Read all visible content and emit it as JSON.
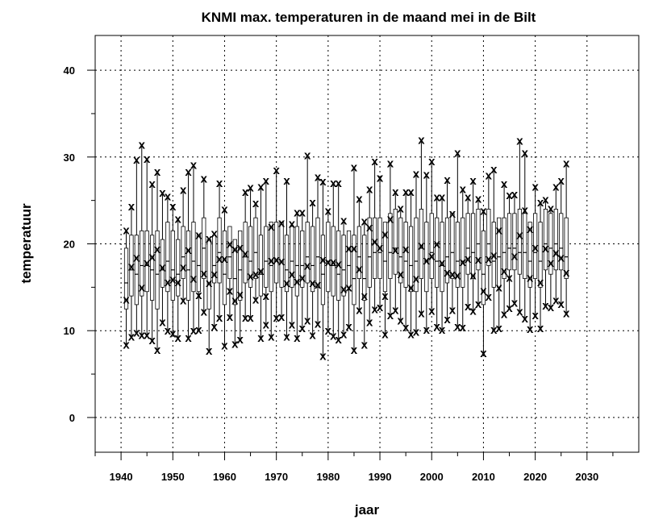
{
  "chart_data": {
    "type": "boxplot",
    "title": "KNMI max. temperaturen in de maand mei in de Bilt",
    "xlabel": "jaar",
    "ylabel": "temperatuur",
    "xlim": [
      1935,
      2040
    ],
    "ylim": [
      -4,
      44
    ],
    "x_ticks": [
      1940,
      1950,
      1960,
      1970,
      1980,
      1990,
      2000,
      2010,
      2020,
      2030
    ],
    "y_ticks": [
      0,
      10,
      20,
      30,
      40
    ],
    "grid": true,
    "marker_symbol": "x",
    "years": [
      1941,
      1942,
      1943,
      1944,
      1945,
      1946,
      1947,
      1948,
      1949,
      1950,
      1951,
      1952,
      1953,
      1954,
      1955,
      1956,
      1957,
      1958,
      1959,
      1960,
      1961,
      1962,
      1963,
      1964,
      1965,
      1966,
      1967,
      1968,
      1969,
      1970,
      1971,
      1972,
      1973,
      1974,
      1975,
      1976,
      1977,
      1978,
      1979,
      1980,
      1981,
      1982,
      1983,
      1984,
      1985,
      1986,
      1987,
      1988,
      1989,
      1990,
      1991,
      1992,
      1993,
      1994,
      1995,
      1996,
      1997,
      1998,
      1999,
      2000,
      2001,
      2002,
      2003,
      2004,
      2005,
      2006,
      2007,
      2008,
      2009,
      2010,
      2011,
      2012,
      2013,
      2014,
      2015,
      2016,
      2017,
      2018,
      2019,
      2020,
      2021,
      2022,
      2023,
      2024,
      2025,
      2026
    ],
    "min": [
      8.4,
      9.3,
      9.8,
      9.5,
      9.5,
      8.9,
      7.8,
      11.0,
      10.0,
      9.7,
      9.2,
      13.5,
      9.2,
      10.0,
      10.1,
      12.2,
      7.7,
      10.5,
      11.5,
      8.3,
      11.6,
      8.5,
      9.0,
      11.5,
      11.5,
      13.6,
      9.2,
      10.7,
      9.3,
      11.5,
      11.6,
      9.3,
      10.7,
      9.2,
      10.3,
      11.2,
      9.5,
      10.8,
      7.1,
      10.0,
      9.4,
      9.0,
      9.6,
      10.5,
      7.8,
      12.4,
      8.4,
      11.0,
      12.5,
      12.7,
      9.6,
      11.8,
      12.4,
      11.2,
      10.4,
      9.6,
      9.9,
      12.0,
      10.1,
      12.3,
      10.5,
      10.1,
      11.3,
      12.4,
      10.5,
      10.4,
      12.8,
      12.3,
      13.1,
      7.4,
      13.9,
      10.1,
      10.3,
      11.9,
      12.6,
      13.2,
      12.2,
      11.4,
      10.2,
      11.8,
      10.3,
      12.9,
      12.7,
      13.5,
      13.1,
      12.0
    ],
    "q1": [
      12.5,
      14.0,
      13.0,
      14.0,
      14.5,
      13.5,
      12.5,
      15.0,
      14.5,
      13.5,
      14.0,
      16.0,
      13.5,
      14.5,
      14.5,
      16.0,
      12.5,
      15.5,
      15.5,
      13.0,
      16.0,
      13.0,
      13.5,
      15.5,
      15.0,
      16.0,
      14.0,
      15.0,
      14.5,
      15.5,
      15.0,
      14.5,
      15.0,
      14.0,
      15.0,
      15.5,
      14.5,
      15.0,
      13.0,
      14.5,
      14.0,
      13.5,
      14.0,
      15.0,
      13.0,
      16.0,
      13.5,
      15.0,
      16.0,
      16.0,
      14.5,
      16.0,
      16.5,
      15.5,
      15.0,
      14.5,
      14.5,
      16.0,
      14.5,
      16.0,
      15.0,
      14.5,
      15.5,
      16.0,
      15.0,
      15.0,
      16.5,
      16.0,
      17.0,
      13.0,
      17.5,
      15.0,
      15.0,
      16.0,
      17.0,
      17.0,
      16.5,
      16.0,
      15.0,
      16.0,
      15.0,
      17.0,
      16.5,
      17.0,
      17.0,
      16.0
    ],
    "median": [
      15.5,
      17.0,
      16.5,
      17.5,
      17.5,
      17.0,
      16.5,
      17.0,
      18.0,
      17.0,
      16.5,
      18.5,
      17.0,
      18.0,
      17.5,
      19.5,
      15.5,
      17.5,
      19.0,
      16.5,
      18.5,
      16.0,
      17.0,
      18.5,
      18.0,
      19.0,
      16.5,
      18.0,
      17.5,
      18.0,
      18.0,
      17.0,
      18.0,
      17.5,
      17.5,
      18.5,
      17.5,
      18.5,
      16.5,
      18.0,
      17.5,
      16.5,
      17.0,
      17.5,
      16.0,
      18.5,
      16.0,
      18.5,
      19.0,
      19.0,
      18.0,
      19.0,
      19.5,
      18.5,
      18.0,
      17.5,
      18.0,
      19.5,
      18.0,
      19.0,
      18.0,
      17.5,
      18.5,
      19.0,
      18.0,
      18.0,
      19.5,
      19.0,
      20.0,
      16.5,
      20.0,
      18.0,
      18.5,
      19.0,
      19.5,
      19.5,
      19.0,
      19.0,
      18.0,
      19.0,
      18.0,
      20.0,
      19.5,
      20.0,
      19.5,
      18.5
    ],
    "q3": [
      19.5,
      21.0,
      21.0,
      21.5,
      21.5,
      21.0,
      21.5,
      20.5,
      22.5,
      21.5,
      20.5,
      22.0,
      21.5,
      22.5,
      21.0,
      23.0,
      20.5,
      21.0,
      23.0,
      21.5,
      22.0,
      20.5,
      21.5,
      22.5,
      22.0,
      23.0,
      21.0,
      22.0,
      22.5,
      22.5,
      22.5,
      21.0,
      22.0,
      22.0,
      21.5,
      22.5,
      22.0,
      23.0,
      21.0,
      22.5,
      22.0,
      21.5,
      21.0,
      21.5,
      21.0,
      22.0,
      21.0,
      23.0,
      23.0,
      23.0,
      22.5,
      23.5,
      24.0,
      23.0,
      22.5,
      22.0,
      23.0,
      24.0,
      22.5,
      23.5,
      23.0,
      22.5,
      23.0,
      23.5,
      22.5,
      23.0,
      23.5,
      23.5,
      24.0,
      21.5,
      24.0,
      22.5,
      23.0,
      23.0,
      23.5,
      23.5,
      24.0,
      23.5,
      22.5,
      23.5,
      22.5,
      24.0,
      23.5,
      24.0,
      23.5,
      23.0
    ],
    "max": [
      21.6,
      24.3,
      29.7,
      31.4,
      29.8,
      26.9,
      28.3,
      25.9,
      25.5,
      24.3,
      22.9,
      26.2,
      28.3,
      29.1,
      21.0,
      27.5,
      20.6,
      21.2,
      27.0,
      24.0,
      20.0,
      19.4,
      19.6,
      26.0,
      26.5,
      24.7,
      26.6,
      27.3,
      22.0,
      28.5,
      22.4,
      27.3,
      22.3,
      23.6,
      23.6,
      30.2,
      24.8,
      27.7,
      27.2,
      23.8,
      27.0,
      27.0,
      22.7,
      19.5,
      28.8,
      25.2,
      22.6,
      26.3,
      29.5,
      27.6,
      21.1,
      29.3,
      26.0,
      24.1,
      26.0,
      26.0,
      28.1,
      32.0,
      28.0,
      29.5,
      25.4,
      25.4,
      27.4,
      23.5,
      30.5,
      26.3,
      25.4,
      27.3,
      25.2,
      23.8,
      27.9,
      28.6,
      21.6,
      26.9,
      25.6,
      25.7,
      31.9,
      30.5,
      21.7,
      26.6,
      24.8,
      25.1,
      24.1,
      26.6,
      27.3,
      29.3
    ],
    "markers": [
      [
        1941,
        21.6
      ],
      [
        1941,
        13.6
      ],
      [
        1941,
        8.4
      ],
      [
        1942,
        24.3
      ],
      [
        1942,
        17.4
      ],
      [
        1942,
        9.3
      ],
      [
        1943,
        29.7
      ],
      [
        1943,
        18.4
      ],
      [
        1943,
        9.8
      ],
      [
        1944,
        31.4
      ],
      [
        1944,
        15.0
      ],
      [
        1944,
        9.5
      ],
      [
        1945,
        29.8
      ],
      [
        1945,
        17.8
      ],
      [
        1945,
        9.5
      ],
      [
        1946,
        26.9
      ],
      [
        1946,
        18.5
      ],
      [
        1946,
        8.9
      ],
      [
        1947,
        28.3
      ],
      [
        1947,
        19.4
      ],
      [
        1947,
        7.8
      ],
      [
        1948,
        25.9
      ],
      [
        1948,
        17.3
      ],
      [
        1948,
        11.0
      ],
      [
        1949,
        25.5
      ],
      [
        1949,
        15.6
      ],
      [
        1949,
        10.0
      ],
      [
        1950,
        24.3
      ],
      [
        1950,
        15.9
      ],
      [
        1950,
        9.7
      ],
      [
        1951,
        22.9
      ],
      [
        1951,
        15.6
      ],
      [
        1951,
        9.2
      ],
      [
        1952,
        26.2
      ],
      [
        1952,
        17.3
      ],
      [
        1952,
        13.5
      ],
      [
        1953,
        28.3
      ],
      [
        1953,
        19.3
      ],
      [
        1953,
        9.2
      ],
      [
        1954,
        29.1
      ],
      [
        1954,
        16.0
      ],
      [
        1954,
        10.0
      ],
      [
        1955,
        21.0
      ],
      [
        1955,
        14.1
      ],
      [
        1955,
        10.1
      ],
      [
        1956,
        27.5
      ],
      [
        1956,
        16.6
      ],
      [
        1956,
        12.2
      ],
      [
        1957,
        20.6
      ],
      [
        1957,
        15.5
      ],
      [
        1957,
        7.7
      ],
      [
        1958,
        21.2
      ],
      [
        1958,
        16.5
      ],
      [
        1958,
        10.5
      ],
      [
        1959,
        27.0
      ],
      [
        1959,
        18.3
      ],
      [
        1959,
        11.5
      ],
      [
        1960,
        24.0
      ],
      [
        1960,
        18.3
      ],
      [
        1960,
        8.3
      ],
      [
        1961,
        20.0
      ],
      [
        1961,
        14.6
      ],
      [
        1961,
        11.6
      ],
      [
        1962,
        19.4
      ],
      [
        1962,
        13.5
      ],
      [
        1962,
        8.5
      ],
      [
        1963,
        19.6
      ],
      [
        1963,
        14.2
      ],
      [
        1963,
        9.0
      ],
      [
        1964,
        26.0
      ],
      [
        1964,
        18.9
      ],
      [
        1964,
        11.5
      ],
      [
        1965,
        26.5
      ],
      [
        1965,
        16.3
      ],
      [
        1965,
        11.5
      ],
      [
        1966,
        24.7
      ],
      [
        1966,
        16.5
      ],
      [
        1966,
        13.6
      ],
      [
        1967,
        26.6
      ],
      [
        1967,
        16.9
      ],
      [
        1967,
        9.2
      ],
      [
        1968,
        27.3
      ],
      [
        1968,
        14.0
      ],
      [
        1968,
        10.7
      ],
      [
        1969,
        22.0
      ],
      [
        1969,
        18.1
      ],
      [
        1969,
        9.3
      ],
      [
        1970,
        28.5
      ],
      [
        1970,
        18.2
      ],
      [
        1970,
        11.5
      ],
      [
        1971,
        22.4
      ],
      [
        1971,
        18.0
      ],
      [
        1971,
        11.6
      ],
      [
        1972,
        27.3
      ],
      [
        1972,
        15.5
      ],
      [
        1972,
        9.3
      ],
      [
        1973,
        22.3
      ],
      [
        1973,
        16.5
      ],
      [
        1973,
        10.7
      ],
      [
        1974,
        23.6
      ],
      [
        1974,
        15.7
      ],
      [
        1974,
        9.2
      ],
      [
        1975,
        23.6
      ],
      [
        1975,
        16.1
      ],
      [
        1975,
        10.3
      ],
      [
        1976,
        30.2
      ],
      [
        1976,
        17.5
      ],
      [
        1976,
        11.2
      ],
      [
        1977,
        24.8
      ],
      [
        1977,
        15.5
      ],
      [
        1977,
        9.5
      ],
      [
        1978,
        27.7
      ],
      [
        1978,
        15.3
      ],
      [
        1978,
        10.8
      ],
      [
        1979,
        27.2
      ],
      [
        1979,
        18.2
      ],
      [
        1979,
        7.1
      ],
      [
        1980,
        23.8
      ],
      [
        1980,
        17.9
      ],
      [
        1980,
        10.0
      ],
      [
        1981,
        27.0
      ],
      [
        1981,
        17.9
      ],
      [
        1981,
        9.4
      ],
      [
        1982,
        27.0
      ],
      [
        1982,
        17.7
      ],
      [
        1982,
        9.0
      ],
      [
        1983,
        22.7
      ],
      [
        1983,
        14.8
      ],
      [
        1983,
        9.6
      ],
      [
        1984,
        19.5
      ],
      [
        1984,
        15.0
      ],
      [
        1984,
        10.5
      ],
      [
        1985,
        28.8
      ],
      [
        1985,
        19.5
      ],
      [
        1985,
        7.8
      ],
      [
        1986,
        25.2
      ],
      [
        1986,
        17.1
      ],
      [
        1986,
        12.4
      ],
      [
        1987,
        22.6
      ],
      [
        1987,
        14.0
      ],
      [
        1987,
        8.4
      ],
      [
        1988,
        26.3
      ],
      [
        1988,
        21.9
      ],
      [
        1988,
        11.0
      ],
      [
        1989,
        29.5
      ],
      [
        1989,
        20.3
      ],
      [
        1989,
        12.5
      ],
      [
        1990,
        27.6
      ],
      [
        1990,
        19.6
      ],
      [
        1990,
        12.7
      ],
      [
        1991,
        21.1
      ],
      [
        1991,
        14.0
      ],
      [
        1991,
        9.6
      ],
      [
        1992,
        29.3
      ],
      [
        1992,
        22.9
      ],
      [
        1992,
        11.8
      ],
      [
        1993,
        26.0
      ],
      [
        1993,
        19.3
      ],
      [
        1993,
        12.4
      ],
      [
        1994,
        24.1
      ],
      [
        1994,
        16.5
      ],
      [
        1994,
        11.2
      ],
      [
        1995,
        26.0
      ],
      [
        1995,
        19.4
      ],
      [
        1995,
        10.4
      ],
      [
        1996,
        26.0
      ],
      [
        1996,
        15.0
      ],
      [
        1996,
        9.6
      ],
      [
        1997,
        28.1
      ],
      [
        1997,
        16.0
      ],
      [
        1997,
        9.9
      ],
      [
        1998,
        32.0
      ],
      [
        1998,
        19.8
      ],
      [
        1998,
        12.0
      ],
      [
        1999,
        28.0
      ],
      [
        1999,
        18.1
      ],
      [
        1999,
        10.1
      ],
      [
        2000,
        29.5
      ],
      [
        2000,
        18.6
      ],
      [
        2000,
        12.3
      ],
      [
        2001,
        25.4
      ],
      [
        2001,
        20.0
      ],
      [
        2001,
        10.5
      ],
      [
        2002,
        25.4
      ],
      [
        2002,
        17.8
      ],
      [
        2002,
        10.1
      ],
      [
        2003,
        27.4
      ],
      [
        2003,
        16.7
      ],
      [
        2003,
        11.3
      ],
      [
        2004,
        23.5
      ],
      [
        2004,
        16.5
      ],
      [
        2004,
        12.4
      ],
      [
        2005,
        30.5
      ],
      [
        2005,
        16.4
      ],
      [
        2005,
        10.5
      ],
      [
        2006,
        26.3
      ],
      [
        2006,
        17.9
      ],
      [
        2006,
        10.4
      ],
      [
        2007,
        25.4
      ],
      [
        2007,
        18.3
      ],
      [
        2007,
        12.8
      ],
      [
        2008,
        27.3
      ],
      [
        2008,
        16.4
      ],
      [
        2008,
        12.3
      ],
      [
        2009,
        25.2
      ],
      [
        2009,
        18.2
      ],
      [
        2009,
        13.1
      ],
      [
        2010,
        23.8
      ],
      [
        2010,
        14.6
      ],
      [
        2010,
        7.4
      ],
      [
        2011,
        27.9
      ],
      [
        2011,
        18.3
      ],
      [
        2011,
        13.9
      ],
      [
        2012,
        28.6
      ],
      [
        2012,
        18.7
      ],
      [
        2012,
        10.1
      ],
      [
        2013,
        21.6
      ],
      [
        2013,
        15.0
      ],
      [
        2013,
        10.3
      ],
      [
        2014,
        26.9
      ],
      [
        2014,
        16.9
      ],
      [
        2014,
        11.9
      ],
      [
        2015,
        25.6
      ],
      [
        2015,
        16.1
      ],
      [
        2015,
        12.6
      ],
      [
        2016,
        25.7
      ],
      [
        2016,
        18.6
      ],
      [
        2016,
        13.2
      ],
      [
        2017,
        31.9
      ],
      [
        2017,
        21.0
      ],
      [
        2017,
        12.2
      ],
      [
        2018,
        30.5
      ],
      [
        2018,
        23.9
      ],
      [
        2018,
        11.4
      ],
      [
        2019,
        21.7
      ],
      [
        2019,
        16.1
      ],
      [
        2019,
        10.2
      ],
      [
        2020,
        26.6
      ],
      [
        2020,
        19.6
      ],
      [
        2020,
        11.8
      ],
      [
        2021,
        24.8
      ],
      [
        2021,
        15.6
      ],
      [
        2021,
        10.3
      ],
      [
        2022,
        25.1
      ],
      [
        2022,
        19.5
      ],
      [
        2022,
        12.9
      ],
      [
        2023,
        24.1
      ],
      [
        2023,
        17.8
      ],
      [
        2023,
        12.7
      ],
      [
        2024,
        26.6
      ],
      [
        2024,
        19.0
      ],
      [
        2024,
        13.5
      ],
      [
        2025,
        27.3
      ],
      [
        2025,
        18.4
      ],
      [
        2025,
        13.1
      ],
      [
        2026,
        29.3
      ],
      [
        2026,
        16.7
      ],
      [
        2026,
        12.0
      ]
    ]
  }
}
